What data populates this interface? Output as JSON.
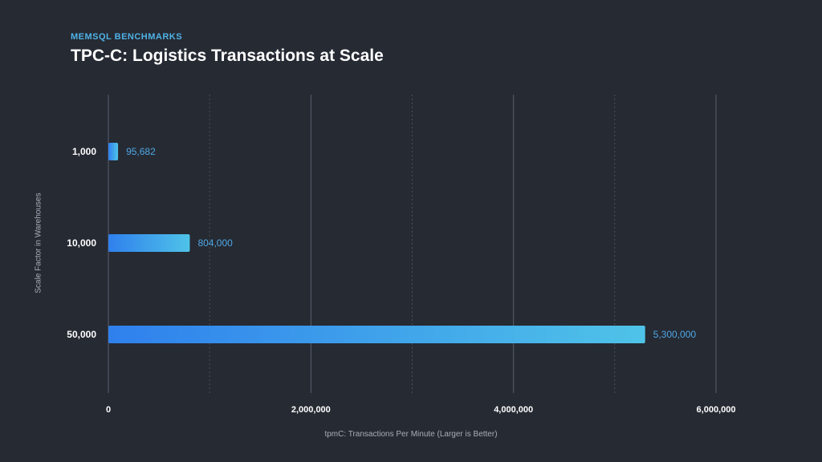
{
  "header": {
    "eyebrow": "MEMSQL BENCHMARKS",
    "title": "TPC-C: Logistics Transactions at Scale"
  },
  "chart_data": {
    "type": "bar",
    "orientation": "horizontal",
    "categories": [
      "1,000",
      "10,000",
      "50,000"
    ],
    "values": [
      95682,
      804000,
      5300000
    ],
    "value_labels": [
      "95,682",
      "804,000",
      "5,300,000"
    ],
    "xlim": [
      0,
      6000000
    ],
    "x_ticks": [
      0,
      2000000,
      4000000,
      6000000
    ],
    "x_tick_labels": [
      "0",
      "2,000,000",
      "4,000,000",
      "6,000,000"
    ],
    "minor_grid": [
      1000000,
      3000000,
      5000000
    ],
    "xlabel": "tpmC: Transactions Per Minute (Larger is Better)",
    "ylabel": "Scale Factor in Warehouses",
    "grid": true,
    "colors": {
      "bar_start": "#2f80ed",
      "bar_end": "#4fc3e8",
      "value_label": "#4fa8e6",
      "major_grid": "#5a5f6b",
      "minor_grid": "#4a4f5b",
      "category_label": "#ffffff",
      "tick_label": "#ffffff"
    }
  }
}
